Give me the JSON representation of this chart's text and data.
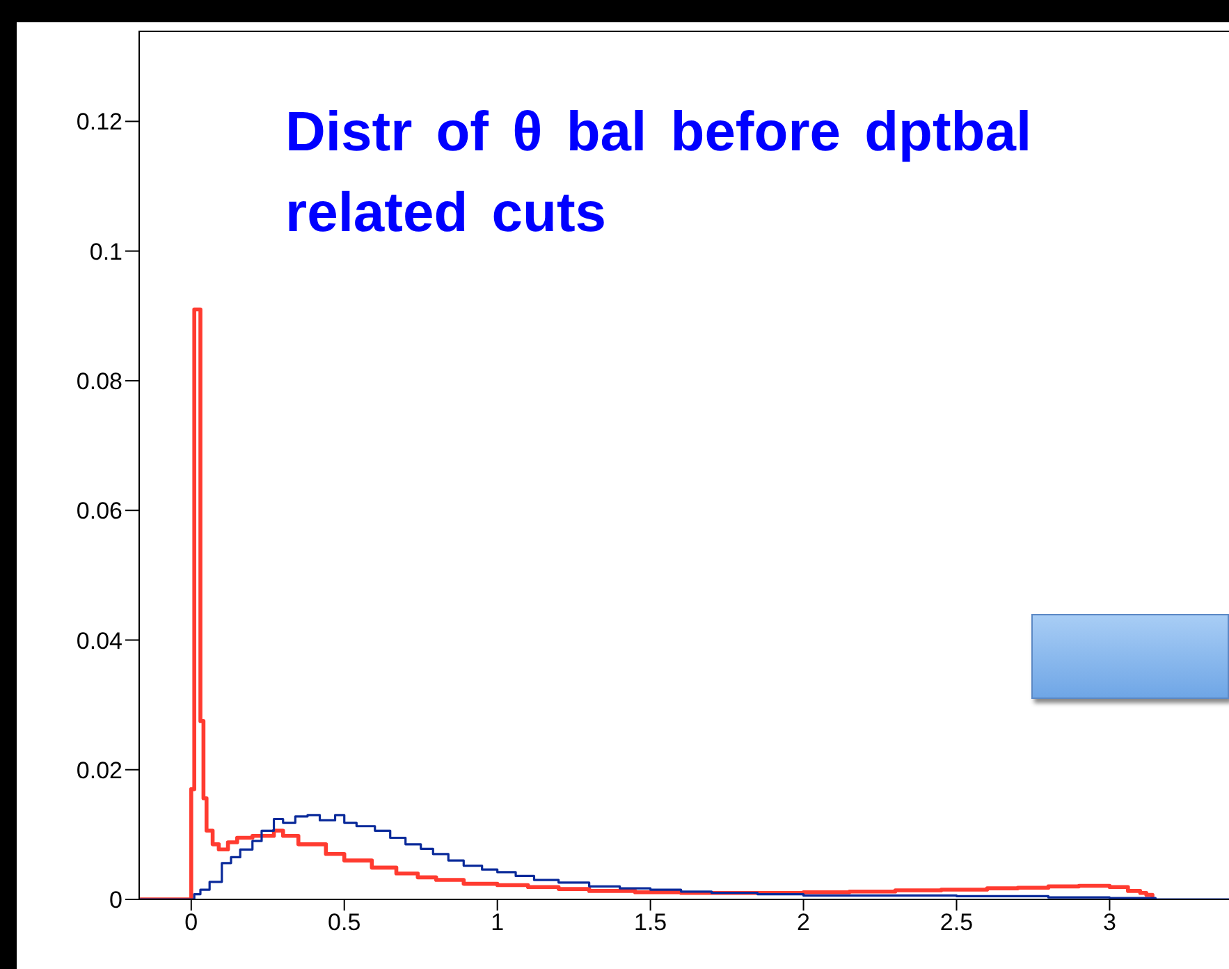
{
  "chart_data": {
    "type": "step",
    "title": "Distr of θ bal before dptbal related cuts",
    "xlim": [
      -0.17,
      3.39
    ],
    "ylim": [
      0,
      0.134
    ],
    "xticks": [
      0,
      0.5,
      1,
      1.5,
      2,
      2.5,
      3
    ],
    "yticks": [
      0,
      0.02,
      0.04,
      0.06,
      0.08,
      0.1,
      0.12
    ],
    "grid": false,
    "legend": false,
    "marker": "none",
    "line_style": "solid",
    "series": [
      {
        "color": "#ff3b30",
        "x": [
          -0.17,
          0,
          0.01,
          0.03,
          0.04,
          0.05,
          0.07,
          0.09,
          0.12,
          0.15,
          0.2,
          0.27,
          0.3,
          0.35,
          0.44,
          0.5,
          0.59,
          0.67,
          0.74,
          0.8,
          0.89,
          1.0,
          1.1,
          1.2,
          1.3,
          1.45,
          1.6,
          1.8,
          2.0,
          2.15,
          2.3,
          2.45,
          2.6,
          2.7,
          2.8,
          2.9,
          3.0,
          3.06,
          3.1,
          3.12,
          3.14
        ],
        "values": [
          0,
          0.017,
          0.091,
          0.0275,
          0.0156,
          0.0106,
          0.0085,
          0.0077,
          0.0088,
          0.0095,
          0.0098,
          0.0106,
          0.0098,
          0.0085,
          0.007,
          0.006,
          0.0049,
          0.004,
          0.0034,
          0.003,
          0.0024,
          0.0022,
          0.0019,
          0.0016,
          0.0013,
          0.0011,
          0.001,
          0.001,
          0.0011,
          0.0012,
          0.0014,
          0.0015,
          0.0017,
          0.0018,
          0.002,
          0.0021,
          0.0019,
          0.0013,
          0.001,
          0.0007,
          0
        ]
      },
      {
        "color": "#0a2a9a",
        "x": [
          -0.17,
          0.01,
          0.03,
          0.06,
          0.1,
          0.13,
          0.16,
          0.2,
          0.23,
          0.27,
          0.3,
          0.34,
          0.38,
          0.42,
          0.47,
          0.5,
          0.54,
          0.6,
          0.65,
          0.7,
          0.75,
          0.79,
          0.84,
          0.89,
          0.95,
          1.0,
          1.06,
          1.12,
          1.2,
          1.3,
          1.4,
          1.5,
          1.6,
          1.7,
          1.85,
          2.0,
          2.2,
          2.5,
          2.8,
          3.0,
          3.15,
          3.39
        ],
        "values": [
          0,
          0.0008,
          0.0015,
          0.0027,
          0.0056,
          0.0065,
          0.0077,
          0.009,
          0.0106,
          0.0124,
          0.0118,
          0.0128,
          0.013,
          0.0122,
          0.013,
          0.0118,
          0.0113,
          0.0106,
          0.0095,
          0.0085,
          0.0078,
          0.007,
          0.006,
          0.0052,
          0.0046,
          0.0042,
          0.0036,
          0.003,
          0.0026,
          0.002,
          0.0017,
          0.0015,
          0.0012,
          0.001,
          0.0008,
          0.0006,
          0.0006,
          0.0005,
          0.0003,
          0.0002,
          0,
          0
        ]
      }
    ]
  }
}
